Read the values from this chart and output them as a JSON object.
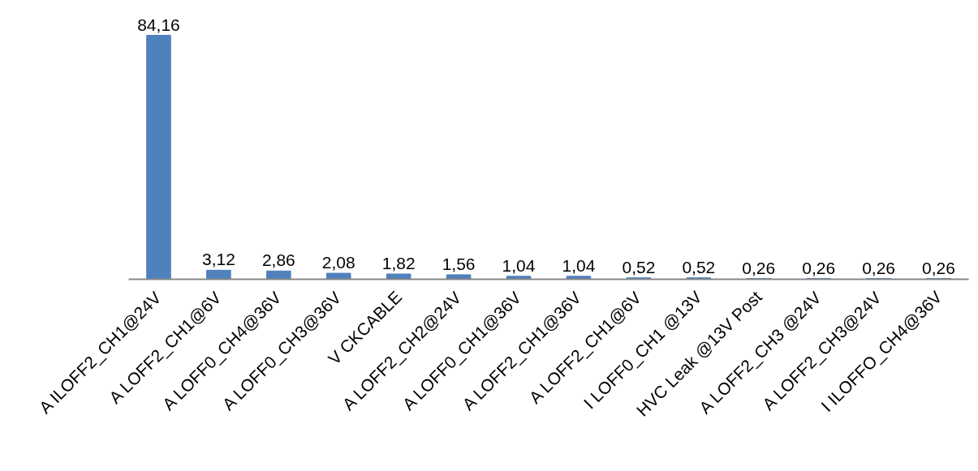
{
  "chart_data": {
    "type": "bar",
    "categories": [
      "A ILOFF2_CH1@24V",
      "A LOFF2_CH1@6V",
      "A LOFF0_CH4@36V",
      "A LOFF0_CH3@36V",
      "V CKCABLE",
      "A LOFF2_CH2@24V",
      "A LOFF0_CH1@36V",
      "A LOFF2_CH1@36V",
      "A LOFF2_CH1@6V",
      "I LOFF0_CH1 @13V",
      "HVC Leak @13V Post",
      "A LOFF2_CH3 @24V",
      "A LOFF2_CH3@24V",
      "I ILOFFO_CH4@36V"
    ],
    "values": [
      84.16,
      3.12,
      2.86,
      2.08,
      1.82,
      1.56,
      1.04,
      1.04,
      0.52,
      0.52,
      0.26,
      0.26,
      0.26,
      0.26
    ],
    "value_labels": [
      "84,16",
      "3,12",
      "2,86",
      "2,08",
      "1,82",
      "1,56",
      "1,04",
      "1,04",
      "0,52",
      "0,52",
      "0,26",
      "0,26",
      "0,26",
      "0,26"
    ],
    "color": "#4f81bd"
  }
}
